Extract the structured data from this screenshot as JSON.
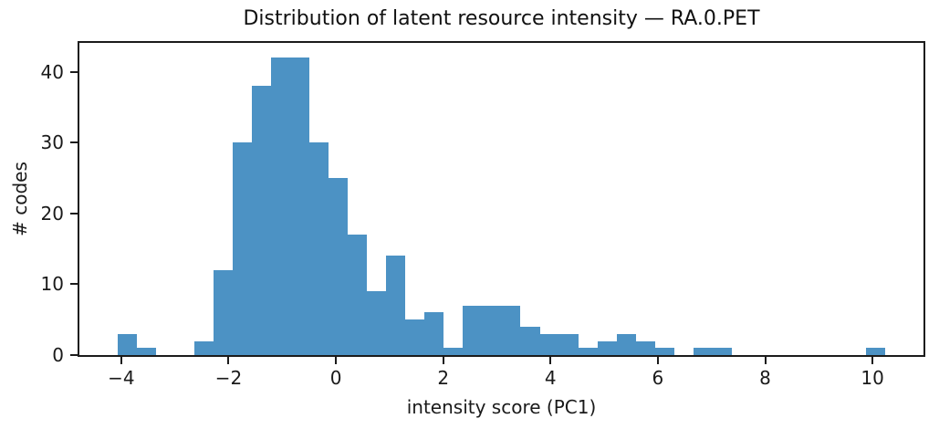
{
  "chart_data": {
    "type": "bar",
    "subtype": "histogram",
    "title": "Distribution of latent resource intensity — RA.0.PET",
    "xlabel": "intensity score (PC1)",
    "ylabel": "# codes",
    "bar_color": "#4C92C4",
    "axis_color": "#1b1b1b",
    "background_color": "#ffffff",
    "grid": false,
    "legend": false,
    "bin_start": -4.07,
    "bin_width": 0.3577,
    "counts": [
      3,
      1,
      0,
      0,
      2,
      12,
      30,
      38,
      42,
      42,
      30,
      25,
      17,
      9,
      14,
      5,
      6,
      1,
      7,
      7,
      7,
      4,
      3,
      3,
      1,
      2,
      3,
      2,
      1,
      0,
      1,
      1,
      0,
      0,
      0,
      0,
      0,
      0,
      0,
      1
    ],
    "total_count": 320,
    "max_count": 42,
    "xlim": [
      -4.78,
      10.95
    ],
    "ylim": [
      0,
      44.1
    ],
    "xticks": [
      {
        "value": -4,
        "label": "−4"
      },
      {
        "value": -2,
        "label": "−2"
      },
      {
        "value": 0,
        "label": "0"
      },
      {
        "value": 2,
        "label": "2"
      },
      {
        "value": 4,
        "label": "4"
      },
      {
        "value": 6,
        "label": "6"
      },
      {
        "value": 8,
        "label": "8"
      },
      {
        "value": 10,
        "label": "10"
      }
    ],
    "yticks": [
      {
        "value": 0,
        "label": "0"
      },
      {
        "value": 10,
        "label": "10"
      },
      {
        "value": 20,
        "label": "20"
      },
      {
        "value": 30,
        "label": "30"
      },
      {
        "value": 40,
        "label": "40"
      }
    ]
  }
}
